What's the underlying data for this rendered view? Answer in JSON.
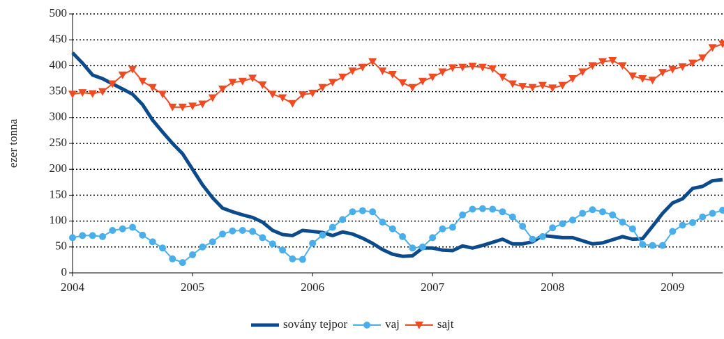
{
  "chart_data": {
    "type": "line",
    "y_label": "ezer tonna",
    "x": [
      2004,
      2004.083,
      2004.167,
      2004.25,
      2004.333,
      2004.417,
      2004.5,
      2004.583,
      2004.667,
      2004.75,
      2004.833,
      2004.917,
      2005,
      2005.083,
      2005.167,
      2005.25,
      2005.333,
      2005.417,
      2005.5,
      2005.583,
      2005.667,
      2005.75,
      2005.833,
      2005.917,
      2006,
      2006.083,
      2006.167,
      2006.25,
      2006.333,
      2006.417,
      2006.5,
      2006.583,
      2006.667,
      2006.75,
      2006.833,
      2006.917,
      2007,
      2007.083,
      2007.167,
      2007.25,
      2007.333,
      2007.417,
      2007.5,
      2007.583,
      2007.667,
      2007.75,
      2007.833,
      2007.917,
      2008,
      2008.083,
      2008.167,
      2008.25,
      2008.333,
      2008.417,
      2008.5,
      2008.583,
      2008.667,
      2008.75,
      2008.833,
      2008.917,
      2009,
      2009.083,
      2009.167,
      2009.25,
      2009.333,
      2009.417
    ],
    "series": [
      {
        "name": "sovány tejpor",
        "color": "#0b4a8b",
        "marker": "none",
        "values": [
          425,
          405,
          382,
          375,
          365,
          355,
          345,
          325,
          295,
          272,
          250,
          230,
          200,
          170,
          145,
          125,
          118,
          112,
          107,
          98,
          82,
          74,
          72,
          82,
          80,
          78,
          72,
          79,
          75,
          67,
          57,
          45,
          36,
          32,
          33,
          48,
          48,
          44,
          43,
          52,
          48,
          53,
          59,
          65,
          56,
          56,
          60,
          72,
          70,
          68,
          68,
          62,
          56,
          58,
          64,
          70,
          65,
          66,
          90,
          115,
          135,
          143,
          163,
          167,
          178,
          180
        ]
      },
      {
        "name": "vaj",
        "color": "#4aaeea",
        "marker": "circle",
        "values": [
          68,
          72,
          72,
          70,
          82,
          85,
          88,
          73,
          60,
          48,
          27,
          20,
          35,
          50,
          60,
          75,
          81,
          82,
          80,
          68,
          56,
          44,
          27,
          26,
          57,
          73,
          88,
          103,
          118,
          120,
          118,
          98,
          85,
          70,
          48,
          50,
          68,
          85,
          88,
          112,
          123,
          124,
          123,
          118,
          108,
          90,
          65,
          70,
          87,
          95,
          102,
          115,
          122,
          118,
          112,
          98,
          85,
          55,
          53,
          53,
          80,
          92,
          97,
          108,
          115,
          121
        ]
      },
      {
        "name": "sajt",
        "color": "#f04a22",
        "marker": "triangle-down",
        "values": [
          345,
          348,
          346,
          350,
          365,
          382,
          393,
          370,
          358,
          345,
          320,
          320,
          322,
          326,
          338,
          355,
          368,
          370,
          376,
          363,
          345,
          338,
          327,
          344,
          347,
          358,
          368,
          378,
          390,
          397,
          408,
          390,
          383,
          367,
          358,
          370,
          378,
          388,
          396,
          397,
          399,
          397,
          394,
          378,
          365,
          360,
          358,
          362,
          357,
          362,
          375,
          388,
          400,
          408,
          410,
          400,
          380,
          375,
          372,
          387,
          393,
          398,
          405,
          415,
          435,
          442
        ]
      }
    ],
    "xlim": [
      2004,
      2009.417
    ],
    "xticks": [
      2004,
      2005,
      2006,
      2007,
      2008,
      2009
    ],
    "ylim": [
      0,
      500
    ],
    "yticks": [
      0,
      50,
      100,
      150,
      200,
      250,
      300,
      350,
      400,
      450,
      500
    ],
    "grid": true,
    "legend": "bottom"
  }
}
